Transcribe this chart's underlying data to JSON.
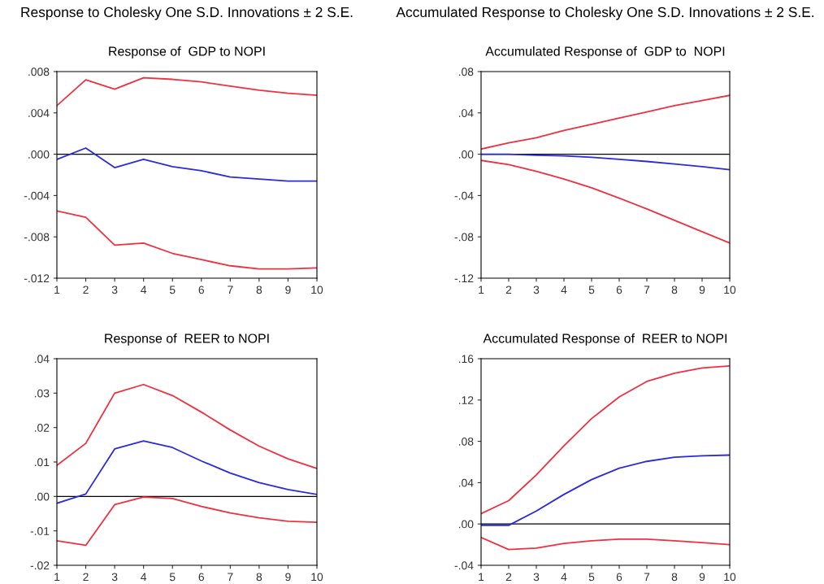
{
  "chart_data": [
    {
      "type": "line",
      "title": "Response of  GDP to NOPI",
      "annotations": [
        "Response to Cholesky One S.D. Innovations ± 2 S.E."
      ],
      "x": [
        1,
        2,
        3,
        4,
        5,
        6,
        7,
        8,
        9,
        10
      ],
      "xlim": [
        1,
        10
      ],
      "xticks": [
        1,
        2,
        3,
        4,
        5,
        6,
        7,
        8,
        9,
        10
      ],
      "ylim": [
        -0.012,
        0.008
      ],
      "yticks": [
        {
          "value": -0.012,
          "label": "-.012"
        },
        {
          "value": -0.008,
          "label": "-.008"
        },
        {
          "value": -0.004,
          "label": "-.004"
        },
        {
          "value": 0,
          "label": ".000"
        },
        {
          "value": 0.004,
          "label": ".004"
        },
        {
          "value": 0.008,
          "label": ".008"
        }
      ],
      "ref_lines": [
        {
          "axis": "y",
          "value": 0,
          "color": "#000000"
        }
      ],
      "grid": false,
      "legend": false,
      "line_style": "solid",
      "series": [
        {
          "color": "#f03040",
          "values": [
            0.0047,
            0.0072,
            0.0063,
            0.0074,
            0.00725,
            0.007,
            0.0066,
            0.0062,
            0.0059,
            0.0057
          ]
        },
        {
          "color": "#2a2ae0",
          "values": [
            -0.0005,
            0.0006,
            -0.0013,
            -0.0005,
            -0.0012,
            -0.0016,
            -0.0022,
            -0.0024,
            -0.0026,
            -0.0026
          ]
        },
        {
          "color": "#f03040",
          "values": [
            -0.0055,
            -0.0061,
            -0.0088,
            -0.0086,
            -0.0096,
            -0.0102,
            -0.0108,
            -0.0111,
            -0.0111,
            -0.011
          ]
        }
      ]
    },
    {
      "type": "line",
      "title": "Accumulated Response of  GDP to  NOPI",
      "annotations": [
        "Accumulated Response to Cholesky One S.D. Innovations ± 2 S.E."
      ],
      "x": [
        1,
        2,
        3,
        4,
        5,
        6,
        7,
        8,
        9,
        10
      ],
      "xlim": [
        1,
        10
      ],
      "xticks": [
        1,
        2,
        3,
        4,
        5,
        6,
        7,
        8,
        9,
        10
      ],
      "ylim": [
        -0.12,
        0.08
      ],
      "yticks": [
        {
          "value": -0.12,
          "label": "-.12"
        },
        {
          "value": -0.08,
          "label": "-.08"
        },
        {
          "value": -0.04,
          "label": "-.04"
        },
        {
          "value": 0,
          "label": ".00"
        },
        {
          "value": 0.04,
          "label": ".04"
        },
        {
          "value": 0.08,
          "label": ".08"
        }
      ],
      "ref_lines": [
        {
          "axis": "y",
          "value": 0,
          "color": "#000000"
        }
      ],
      "grid": false,
      "legend": false,
      "line_style": "solid",
      "series": [
        {
          "color": "#f03040",
          "values": [
            0.005,
            0.011,
            0.016,
            0.023,
            0.029,
            0.035,
            0.041,
            0.047,
            0.052,
            0.057
          ]
        },
        {
          "color": "#2a2ae0",
          "values": [
            0,
            0,
            -0.001,
            -0.0016,
            -0.003,
            -0.005,
            -0.007,
            -0.0094,
            -0.012,
            -0.015
          ]
        },
        {
          "color": "#f03040",
          "values": [
            -0.006,
            -0.01,
            -0.0165,
            -0.024,
            -0.0325,
            -0.0425,
            -0.053,
            -0.064,
            -0.075,
            -0.086
          ]
        }
      ]
    },
    {
      "type": "line",
      "title": "Response of  REER to NOPI",
      "x": [
        1,
        2,
        3,
        4,
        5,
        6,
        7,
        8,
        9,
        10
      ],
      "xlim": [
        1,
        10
      ],
      "xticks": [
        1,
        2,
        3,
        4,
        5,
        6,
        7,
        8,
        9,
        10
      ],
      "ylim": [
        -0.02,
        0.04
      ],
      "yticks": [
        {
          "value": -0.02,
          "label": "-.02"
        },
        {
          "value": -0.01,
          "label": "-.01"
        },
        {
          "value": 0,
          "label": ".00"
        },
        {
          "value": 0.01,
          "label": ".01"
        },
        {
          "value": 0.02,
          "label": ".02"
        },
        {
          "value": 0.03,
          "label": ".03"
        },
        {
          "value": 0.04,
          "label": ".04"
        }
      ],
      "ref_lines": [
        {
          "axis": "y",
          "value": 0,
          "color": "#000000"
        }
      ],
      "grid": false,
      "legend": false,
      "line_style": "solid",
      "series": [
        {
          "color": "#f03040",
          "values": [
            0.009,
            0.0154,
            0.03,
            0.0325,
            0.0293,
            0.0245,
            0.0193,
            0.0146,
            0.0109,
            0.0081
          ]
        },
        {
          "color": "#2a2ae0",
          "values": [
            -0.002,
            0.0007,
            0.0138,
            0.0161,
            0.0142,
            0.0103,
            0.0068,
            0.004,
            0.002,
            0.0006
          ]
        },
        {
          "color": "#f03040",
          "values": [
            -0.0129,
            -0.0142,
            -0.0024,
            -0.0002,
            -0.0006,
            -0.0029,
            -0.0048,
            -0.0062,
            -0.0072,
            -0.0075
          ]
        }
      ]
    },
    {
      "type": "line",
      "title": "Accumulated Response of  REER to NOPI",
      "x": [
        1,
        2,
        3,
        4,
        5,
        6,
        7,
        8,
        9,
        10
      ],
      "xlim": [
        1,
        10
      ],
      "xticks": [
        1,
        2,
        3,
        4,
        5,
        6,
        7,
        8,
        9,
        10
      ],
      "ylim": [
        -0.04,
        0.16
      ],
      "yticks": [
        {
          "value": -0.04,
          "label": "-.04"
        },
        {
          "value": 0,
          "label": ".00"
        },
        {
          "value": 0.04,
          "label": ".04"
        },
        {
          "value": 0.08,
          "label": ".08"
        },
        {
          "value": 0.12,
          "label": ".12"
        },
        {
          "value": 0.16,
          "label": ".16"
        }
      ],
      "ref_lines": [
        {
          "axis": "y",
          "value": 0,
          "color": "#000000"
        }
      ],
      "grid": false,
      "legend": false,
      "line_style": "solid",
      "series": [
        {
          "color": "#f03040",
          "values": [
            0.01,
            0.0226,
            0.0475,
            0.0756,
            0.102,
            0.123,
            0.138,
            0.146,
            0.151,
            0.153
          ]
        },
        {
          "color": "#2a2ae0",
          "values": [
            -0.0013,
            -0.0013,
            0.0126,
            0.0286,
            0.043,
            0.054,
            0.0606,
            0.0646,
            0.066,
            0.0667
          ]
        },
        {
          "color": "#f03040",
          "values": [
            -0.013,
            -0.0247,
            -0.0234,
            -0.0189,
            -0.0163,
            -0.0147,
            -0.0147,
            -0.0163,
            -0.0181,
            -0.02
          ]
        }
      ]
    }
  ]
}
